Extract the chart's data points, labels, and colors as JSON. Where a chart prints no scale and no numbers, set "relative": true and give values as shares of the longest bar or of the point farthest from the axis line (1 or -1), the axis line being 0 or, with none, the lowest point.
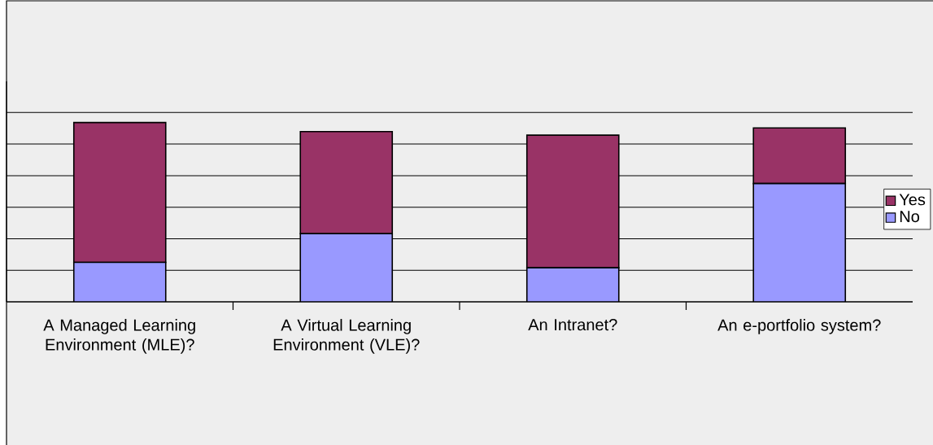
{
  "chart_data": {
    "type": "bar",
    "stacked": true,
    "relative": true,
    "grid": "y",
    "legend": "right",
    "categories": [
      "A Managed Learning Environment (MLE)?",
      "A Virtual Learning Environment (VLE)?",
      "An Intranet?",
      "An e-portfolio system?"
    ],
    "series": [
      {
        "name": "No",
        "color": "#9999ff",
        "values": [
          0.22,
          0.38,
          0.19,
          0.66
        ]
      },
      {
        "name": "Yes",
        "color": "#993366",
        "values": [
          0.78,
          0.57,
          0.74,
          0.31
        ]
      }
    ]
  }
}
